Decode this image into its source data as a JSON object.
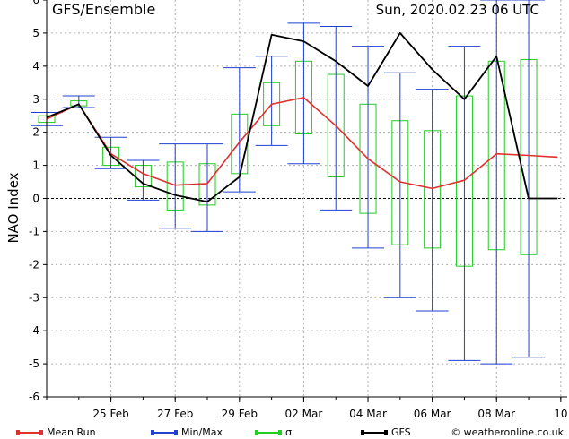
{
  "header": {
    "title": "GFS/Ensemble",
    "run_time": "Sun, 2020.02.23   06 UTC"
  },
  "legend": {
    "mean_label": "Mean Run",
    "minmax_label": "Min/Max",
    "sigma_label": "σ",
    "gfs_label": "GFS",
    "credit": "© weatheronline.co.uk"
  },
  "colors": {
    "mean": "#e03030",
    "minmax": "#2040d0",
    "sigma": "#22cc22",
    "gfs": "#000000",
    "grid": "#b0b0b0"
  },
  "chart_data": {
    "type": "line",
    "title": "GFS/Ensemble",
    "ylabel": "NAO Index",
    "xlabel": "",
    "ylim": [
      -6,
      6
    ],
    "yticks": [
      "-6",
      "-5",
      "-4",
      "-3",
      "-2",
      "-1",
      "0",
      "1",
      "2",
      "3",
      "4",
      "5",
      "6"
    ],
    "x_labels": [
      "25 Feb",
      "27 Feb",
      "29 Feb",
      "02 Mar",
      "04 Mar",
      "06 Mar",
      "08 Mar",
      "10"
    ],
    "x_label_days": [
      2,
      4,
      6,
      8,
      10,
      12,
      14,
      16
    ],
    "x_range_days": [
      0,
      16.2
    ],
    "days": [
      0,
      1,
      2,
      3,
      4,
      5,
      6,
      7,
      8,
      9,
      10,
      11,
      12,
      13,
      14,
      15,
      15.9
    ],
    "series": [
      {
        "name": "Mean Run",
        "values": [
          2.4,
          2.85,
          1.35,
          0.75,
          0.4,
          0.45,
          1.7,
          2.85,
          3.05,
          2.2,
          1.2,
          0.5,
          0.3,
          0.55,
          1.35,
          1.3,
          1.25
        ]
      },
      {
        "name": "GFS",
        "values": [
          2.45,
          2.85,
          1.3,
          0.45,
          0.1,
          -0.1,
          0.65,
          4.95,
          4.75,
          4.15,
          3.4,
          5.0,
          3.9,
          3.0,
          4.3,
          0.0,
          0.0
        ]
      },
      {
        "name": "Min/Max",
        "min": [
          2.2,
          2.75,
          0.9,
          -0.05,
          -0.9,
          -1.0,
          0.2,
          1.6,
          1.05,
          -0.35,
          -1.5,
          -3.0,
          -3.4,
          -4.9,
          -5.0,
          -4.8,
          null
        ],
        "max": [
          2.6,
          3.1,
          1.85,
          1.15,
          1.65,
          1.65,
          3.95,
          4.3,
          5.3,
          5.2,
          4.6,
          3.8,
          3.3,
          4.6,
          6.0,
          6.0,
          null
        ]
      },
      {
        "name": "σ",
        "low": [
          2.3,
          2.8,
          1.0,
          0.35,
          -0.35,
          -0.2,
          0.75,
          2.2,
          1.95,
          0.65,
          -0.45,
          -1.4,
          -1.5,
          -2.05,
          -1.55,
          -1.7,
          null
        ],
        "high": [
          2.5,
          2.95,
          1.55,
          1.0,
          1.1,
          1.05,
          2.55,
          3.5,
          4.15,
          3.75,
          2.85,
          2.35,
          2.05,
          3.1,
          4.15,
          4.2,
          null
        ]
      }
    ],
    "grid": true,
    "zero_line": "dashed",
    "legend_position": "bottom"
  }
}
